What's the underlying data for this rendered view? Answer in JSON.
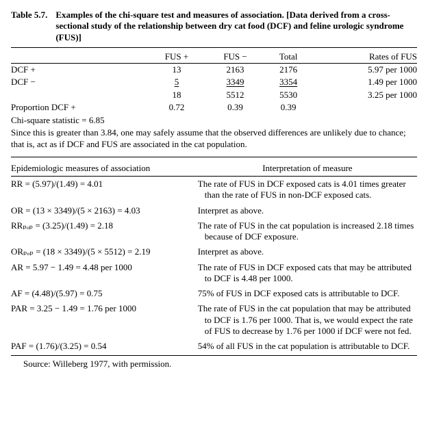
{
  "table_label": "Table 5.7.",
  "title": "Examples of the chi-square test and measures of association. [Data derived from a cross-sectional study of the relationship between dry cat food (DCF) and feline urologic syndrome (FUS)]",
  "headers": {
    "blank": "",
    "fus_plus": "FUS +",
    "fus_minus": "FUS −",
    "total": "Total",
    "rates": "Rates of FUS"
  },
  "rows": {
    "dcf_plus": {
      "label": "DCF +",
      "fus_plus": "13",
      "fus_minus": "2163",
      "total": "2176",
      "rate": "5.97 per 1000"
    },
    "dcf_minus": {
      "label": "DCF −",
      "fus_plus": "5",
      "fus_minus": "3349",
      "total": "3354",
      "rate": "1.49 per 1000"
    },
    "totals": {
      "label": "",
      "fus_plus": "18",
      "fus_minus": "5512",
      "total": "5530",
      "rate": "3.25 per 1000"
    },
    "prop": {
      "label": "Proportion DCF +",
      "fus_plus": "0.72",
      "fus_minus": "0.39",
      "total": "0.39",
      "rate": ""
    }
  },
  "chi_line": "Chi-square statistic = 6.85",
  "note": "Since this is greater than 3.84, one may safely assume that the observed differences are unlikely due to chance; that is, act as if DCF and FUS are associated in the cat population.",
  "measures_header_left": "Epidemiologic measures of association",
  "measures_header_right": "Interpretation of measure",
  "measures": [
    {
      "formula": "RR = (5.97)/(1.49) = 4.01",
      "interp": "The rate of FUS in DCF exposed cats is 4.01 times greater than the rate of FUS in non-DCF exposed cats."
    },
    {
      "formula": "OR = (13 × 3349)/(5 × 2163) = 4.03",
      "interp": "Interpret as above."
    },
    {
      "formula": "RRₚₒₚ = (3.25)/(1.49) = 2.18",
      "interp": "The rate of FUS in the cat population is increased 2.18 times because of DCF exposure."
    },
    {
      "formula": "ORₚₒₚ = (18 × 3349)/(5 × 5512) = 2.19",
      "interp": "Interpret as above."
    },
    {
      "formula": "AR = 5.97 − 1.49 = 4.48 per 1000",
      "interp": "The rate of FUS in DCF exposed cats that may be attributed to DCF is 4.48 per 1000."
    },
    {
      "formula": "AF = (4.48)/(5.97) = 0.75",
      "interp": "75% of FUS in DCF exposed cats is attributable to DCF."
    },
    {
      "formula": "PAR = 3.25 − 1.49 = 1.76 per 1000",
      "interp": "The rate of FUS in the cat population that may be attributed to DCF is 1.76 per 1000. That is, we would expect the rate of FUS to decrease by 1.76 per 1000 if DCF were not fed."
    },
    {
      "formula": "PAF = (1.76)/(3.25) = 0.54",
      "interp": "54% of all FUS in the cat population is attributable to DCF."
    }
  ],
  "source": "Source: Willeberg 1977, with permission."
}
